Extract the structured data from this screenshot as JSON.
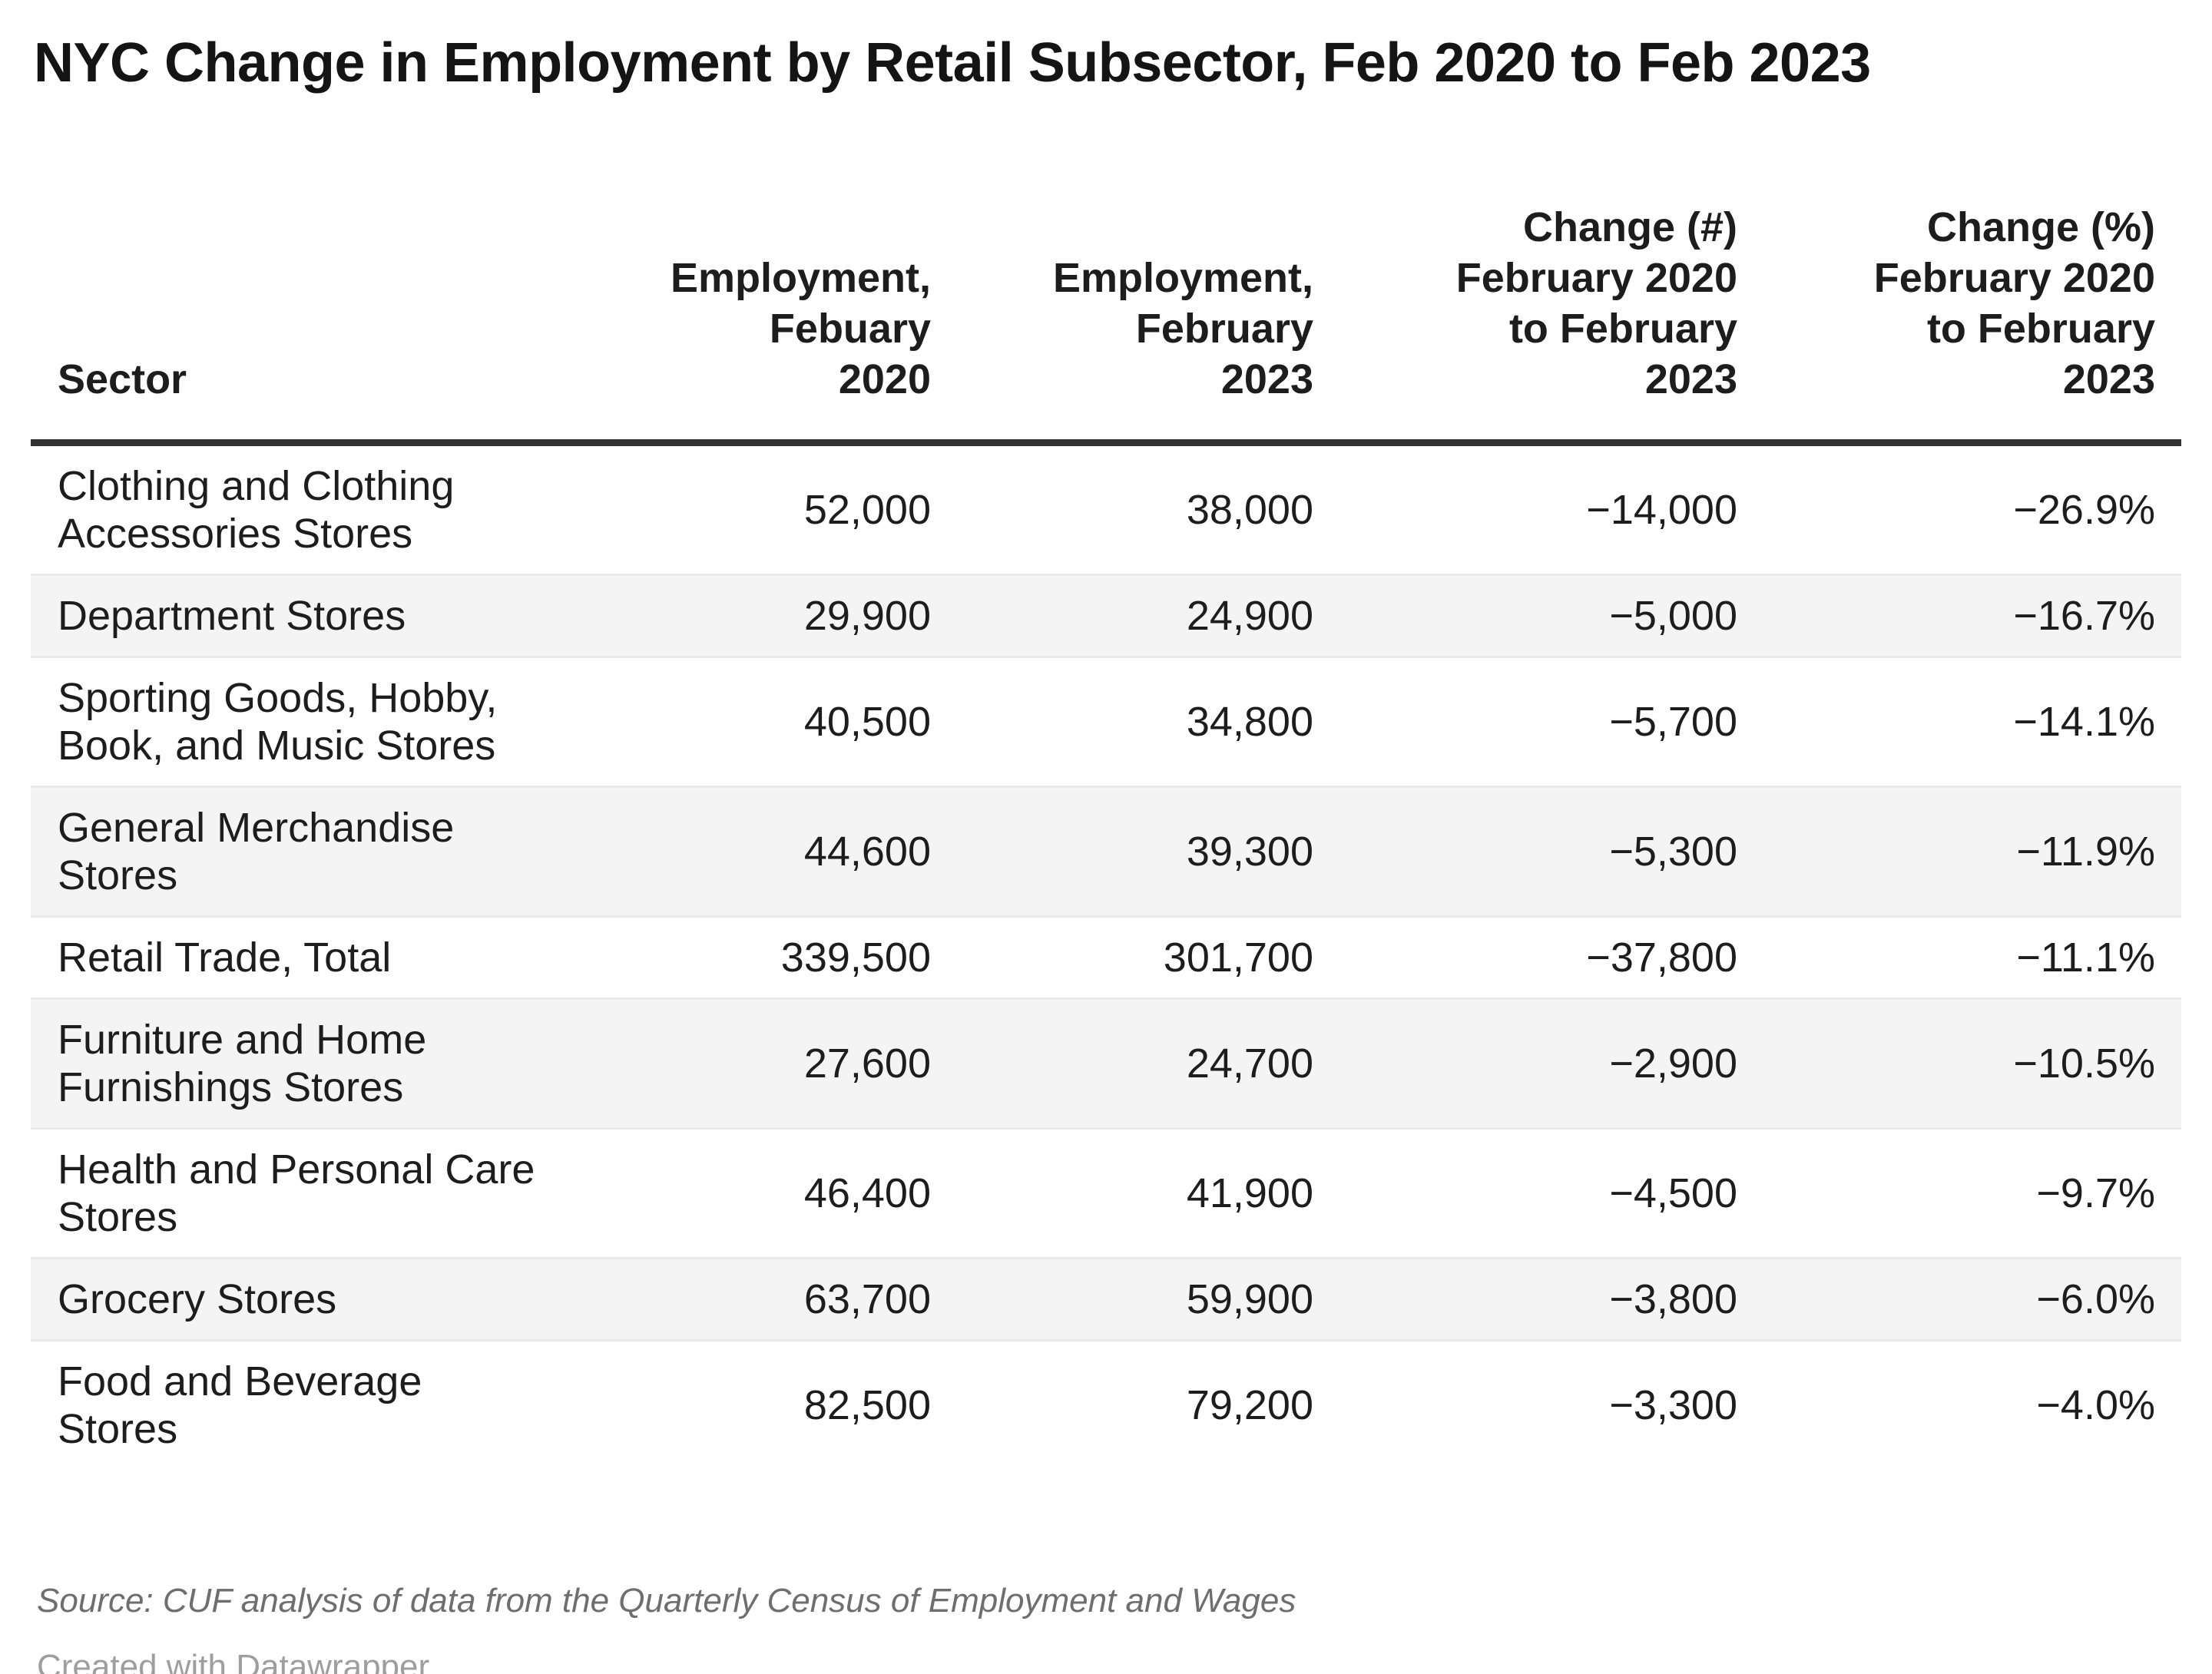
{
  "colors": {
    "background": "#ffffff",
    "text": "#1d1d1d",
    "title": "#141414",
    "header_rule": "#333333",
    "row_stripe": "#f4f4f4",
    "row_border": "#e9e9e9",
    "source_text": "#6e6e6e",
    "created_text": "#9e9e9e"
  },
  "header": {
    "title": "NYC Change in Employment by Retail Subsector, Feb 2020 to Feb 2023"
  },
  "chart_data": {
    "type": "table",
    "title": "NYC Change in Employment by Retail Subsector, Feb 2020 to Feb 2023",
    "columns": [
      "Sector",
      "Employment, Febuary 2020",
      "Employment, February 2023",
      "Change (#) February 2020 to February 2023",
      "Change (%) February 2020 to February 2023"
    ],
    "rows": [
      {
        "sector": "Clothing and Clothing Accessories Stores",
        "employment_feb_2020": 52000,
        "employment_feb_2023": 38000,
        "change_number": -14000,
        "change_percent": -26.9
      },
      {
        "sector": "Department Stores",
        "employment_feb_2020": 29900,
        "employment_feb_2023": 24900,
        "change_number": -5000,
        "change_percent": -16.7
      },
      {
        "sector": "Sporting Goods, Hobby, Book, and Music Stores",
        "employment_feb_2020": 40500,
        "employment_feb_2023": 34800,
        "change_number": -5700,
        "change_percent": -14.1
      },
      {
        "sector": "General Merchandise Stores",
        "employment_feb_2020": 44600,
        "employment_feb_2023": 39300,
        "change_number": -5300,
        "change_percent": -11.9
      },
      {
        "sector": "Retail Trade, Total",
        "employment_feb_2020": 339500,
        "employment_feb_2023": 301700,
        "change_number": -37800,
        "change_percent": -11.1
      },
      {
        "sector": "Furniture and Home Furnishings Stores",
        "employment_feb_2020": 27600,
        "employment_feb_2023": 24700,
        "change_number": -2900,
        "change_percent": -10.5
      },
      {
        "sector": "Health and Personal Care Stores",
        "employment_feb_2020": 46400,
        "employment_feb_2023": 41900,
        "change_number": -4500,
        "change_percent": -9.7
      },
      {
        "sector": "Grocery Stores",
        "employment_feb_2020": 63700,
        "employment_feb_2023": 59900,
        "change_number": -3800,
        "change_percent": -6.0
      },
      {
        "sector": "Food and Beverage Stores",
        "employment_feb_2020": 82500,
        "employment_feb_2023": 79200,
        "change_number": -3300,
        "change_percent": -4.0
      }
    ]
  },
  "table_display": {
    "column_headers": [
      "Sector",
      "Employment,\nFebuary\n2020",
      "Employment,\nFebruary\n2023",
      "Change (#)\nFebruary 2020\nto February\n2023",
      "Change (%)\nFebruary 2020\nto February\n2023"
    ],
    "rows": [
      {
        "sector": "Clothing and Clothing\nAccessories Stores",
        "cells": [
          "52,000",
          "38,000",
          "−14,000",
          "−26.9%"
        ]
      },
      {
        "sector": "Department Stores",
        "cells": [
          "29,900",
          "24,900",
          "−5,000",
          "−16.7%"
        ]
      },
      {
        "sector": "Sporting Goods, Hobby,\nBook, and Music Stores",
        "cells": [
          "40,500",
          "34,800",
          "−5,700",
          "−14.1%"
        ]
      },
      {
        "sector": "General Merchandise\nStores",
        "cells": [
          "44,600",
          "39,300",
          "−5,300",
          "−11.9%"
        ]
      },
      {
        "sector": "Retail Trade, Total",
        "cells": [
          "339,500",
          "301,700",
          "−37,800",
          "−11.1%"
        ]
      },
      {
        "sector": "Furniture and Home\nFurnishings Stores",
        "cells": [
          "27,600",
          "24,700",
          "−2,900",
          "−10.5%"
        ]
      },
      {
        "sector": "Health and Personal Care\nStores",
        "cells": [
          "46,400",
          "41,900",
          "−4,500",
          "−9.7%"
        ]
      },
      {
        "sector": "Grocery Stores",
        "cells": [
          "63,700",
          "59,900",
          "−3,800",
          "−6.0%"
        ]
      },
      {
        "sector": "Food and Beverage\nStores",
        "cells": [
          "82,500",
          "79,200",
          "−3,300",
          "−4.0%"
        ]
      }
    ]
  },
  "footer": {
    "source": "Source: CUF analysis of data from the Quarterly Census of Employment and Wages",
    "created": "Created with Datawrapper"
  }
}
